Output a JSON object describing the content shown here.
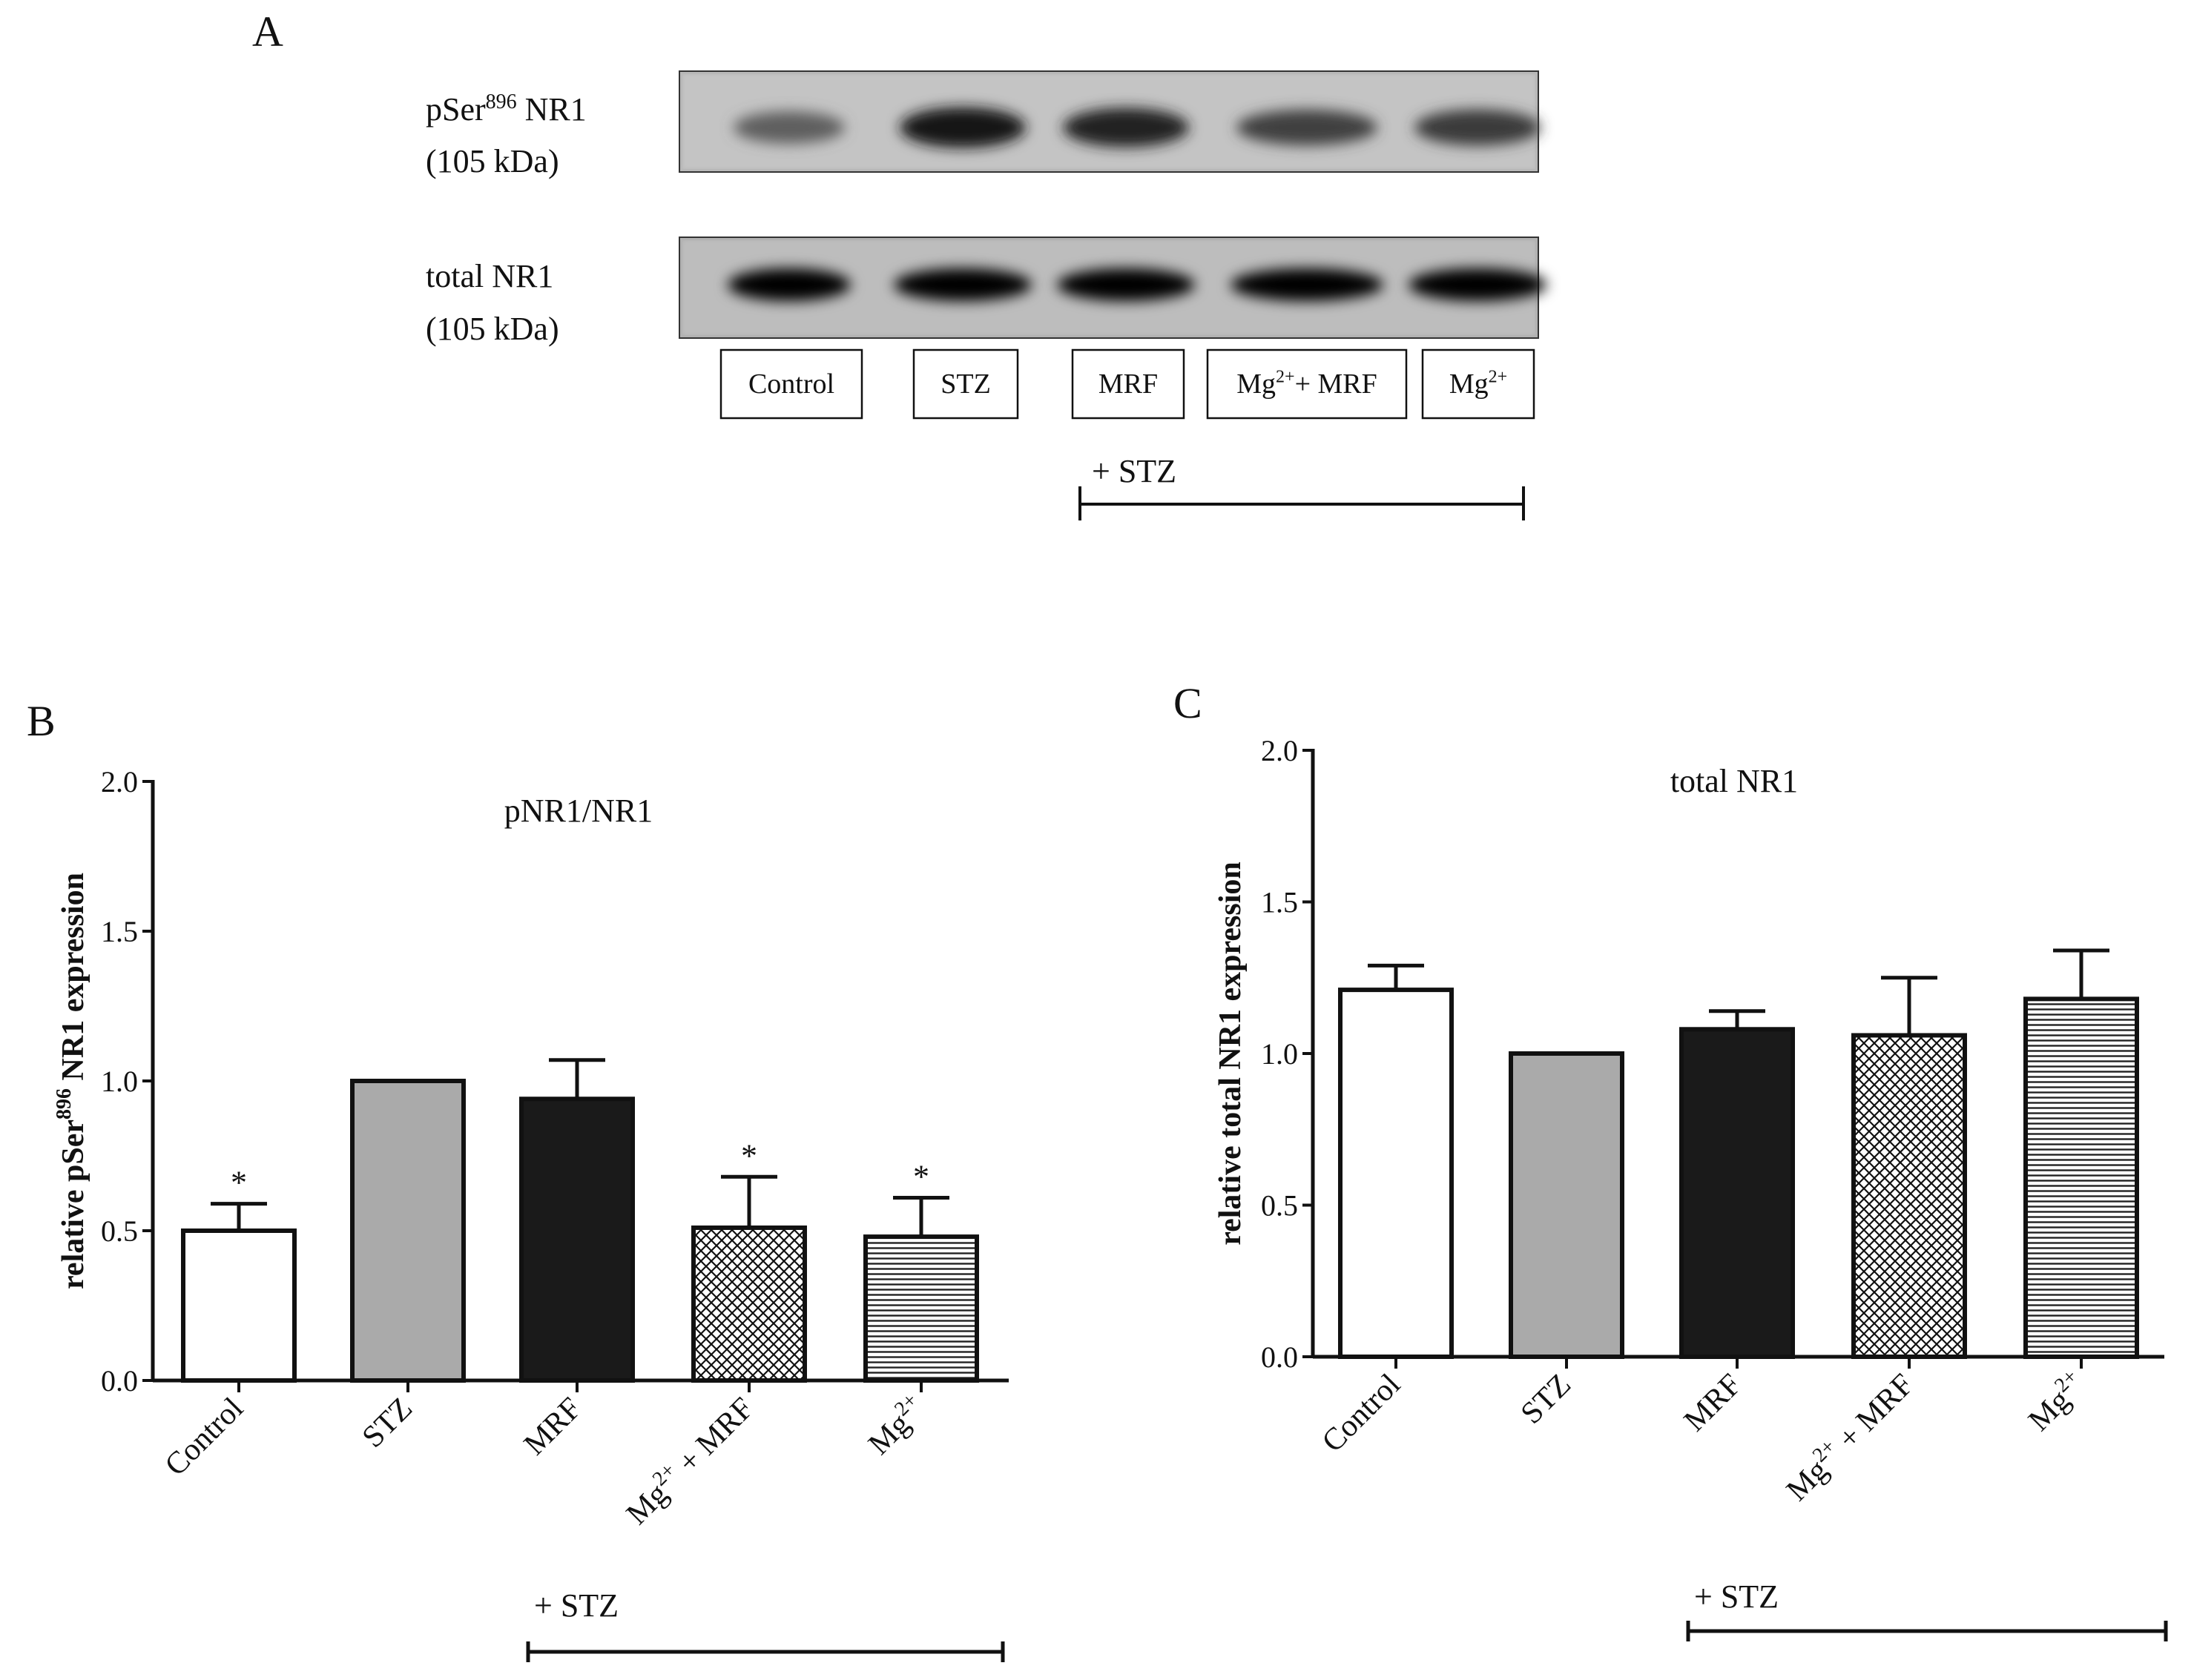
{
  "panel_a": {
    "letter": "A",
    "blot_labels": [
      {
        "name": "pSer",
        "sup": "896",
        "tail": " NR1",
        "size": "(105 kDa)"
      },
      {
        "name": "total NR1",
        "sup": "",
        "tail": "",
        "size": "(105 kDa)"
      }
    ],
    "lanes": [
      {
        "base": "Control",
        "sup": "",
        "tail": ""
      },
      {
        "base": "STZ",
        "sup": "",
        "tail": ""
      },
      {
        "base": "MRF",
        "sup": "",
        "tail": ""
      },
      {
        "base": "Mg",
        "sup": "2+",
        "tail": "+ MRF"
      },
      {
        "base": "Mg",
        "sup": "2+",
        "tail": ""
      }
    ],
    "pser_band_intensity": [
      0.55,
      0.95,
      0.88,
      0.72,
      0.74
    ],
    "total_band_intensity": [
      0.98,
      0.98,
      0.98,
      0.98,
      0.98
    ],
    "group_label": "+ STZ"
  },
  "chart_data": [
    {
      "panel": "B",
      "type": "bar",
      "title": "pNR1/NR1",
      "ylabel": {
        "base": "relative pSer",
        "sup": "896",
        "tail": " NR1 expression"
      },
      "ylim": [
        0,
        2.0
      ],
      "yticks": [
        "0.0",
        "0.5",
        "1.0",
        "1.5",
        "2.0"
      ],
      "categories": [
        {
          "base": "Control",
          "sup": "",
          "tail": ""
        },
        {
          "base": "STZ",
          "sup": "",
          "tail": ""
        },
        {
          "base": "MRF",
          "sup": "",
          "tail": ""
        },
        {
          "base": "Mg",
          "sup": "2+",
          "tail": " + MRF"
        },
        {
          "base": "Mg",
          "sup": "2+",
          "tail": ""
        }
      ],
      "values": [
        0.5,
        1.0,
        0.94,
        0.51,
        0.48
      ],
      "errors": [
        0.09,
        0.0,
        0.13,
        0.17,
        0.13
      ],
      "significance": [
        "*",
        "",
        "",
        "*",
        "*"
      ],
      "fills": [
        "white",
        "gray",
        "black",
        "crosshatch",
        "horizontal"
      ],
      "group_label": "+ STZ",
      "grid": false
    },
    {
      "panel": "C",
      "type": "bar",
      "title": "total NR1",
      "ylabel": {
        "base": "relative total NR1 expression",
        "sup": "",
        "tail": ""
      },
      "ylim": [
        0,
        2.0
      ],
      "yticks": [
        "0.0",
        "0.5",
        "1.0",
        "1.5",
        "2.0"
      ],
      "categories": [
        {
          "base": "Control",
          "sup": "",
          "tail": ""
        },
        {
          "base": "STZ",
          "sup": "",
          "tail": ""
        },
        {
          "base": "MRF",
          "sup": "",
          "tail": ""
        },
        {
          "base": "Mg",
          "sup": "2+",
          "tail": " + MRF"
        },
        {
          "base": "Mg",
          "sup": "2+",
          "tail": ""
        }
      ],
      "values": [
        1.21,
        1.0,
        1.08,
        1.06,
        1.18
      ],
      "errors": [
        0.08,
        0.0,
        0.06,
        0.19,
        0.16
      ],
      "significance": [
        "",
        "",
        "",
        "",
        ""
      ],
      "fills": [
        "white",
        "gray",
        "black",
        "crosshatch",
        "horizontal"
      ],
      "group_label": "+ STZ",
      "grid": false
    }
  ],
  "colors": {
    "gray_bar": "#aaaaaa",
    "black_bar": "#1a1a1a",
    "ink": "#111111"
  }
}
